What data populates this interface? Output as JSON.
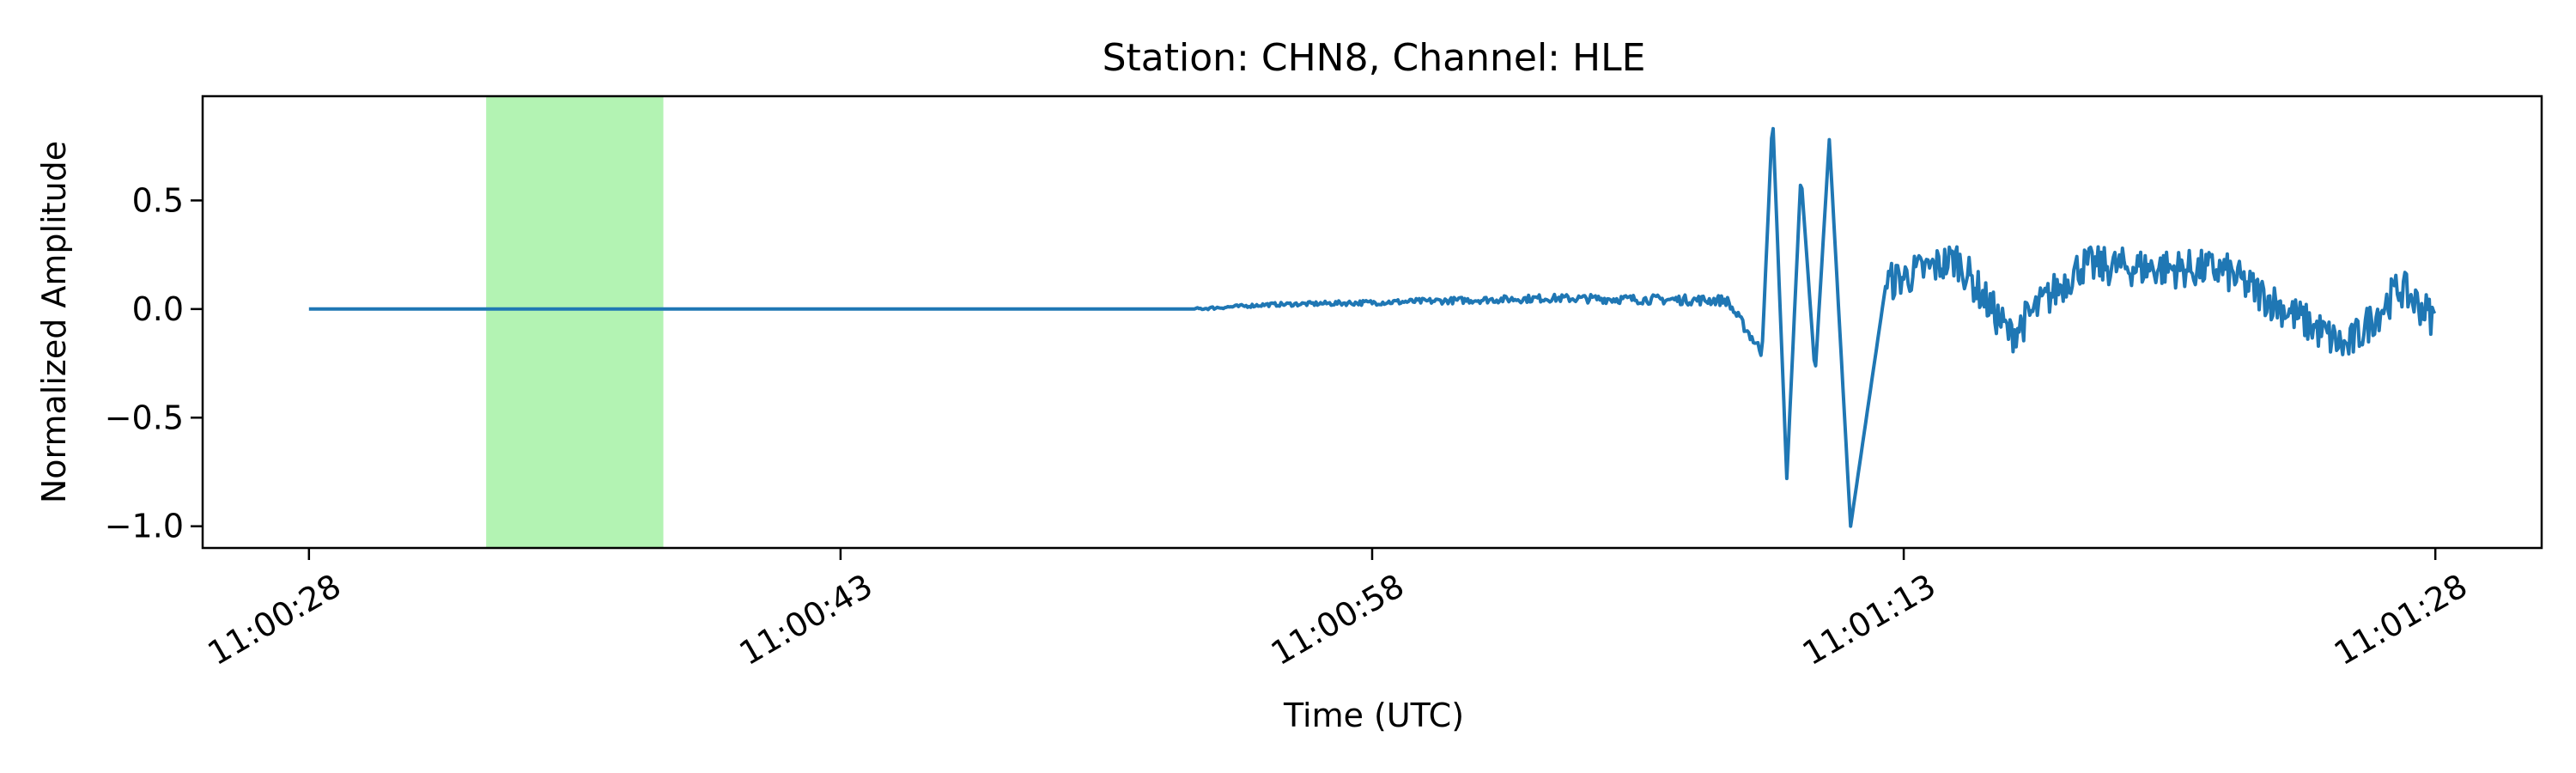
{
  "chart_data": {
    "type": "line",
    "title": "Station: CHN8, Channel: HLE",
    "xlabel": "Time (UTC)",
    "ylabel": "Normalized Amplitude",
    "x_start": "11:00:28",
    "x_end": "11:01:28",
    "xlim": [
      "11:00:25",
      "11:01:31"
    ],
    "ylim": [
      -1.1,
      0.98
    ],
    "x_ticks": [
      "11:00:28",
      "11:00:43",
      "11:00:58",
      "11:01:13",
      "11:01:28"
    ],
    "y_ticks": [
      0.5,
      0.0,
      -0.5,
      -1.0
    ],
    "y_tick_labels": [
      "0.5",
      "0.0",
      "−0.5",
      "−1.0"
    ],
    "highlight_span": {
      "start": "11:00:33",
      "end": "11:00:38",
      "color": "#b3f3b3"
    },
    "line_color": "#1f77b4",
    "grid": false,
    "series": [
      {
        "x": [
          "11:00:28",
          "11:00:38",
          "11:00:48",
          "11:00:53",
          "11:00:55",
          "11:00:58",
          "11:01:03",
          "11:01:08",
          "11:01:09",
          "11:01:09.3",
          "11:01:09.7",
          "11:01:10.1",
          "11:01:10.5",
          "11:01:10.9",
          "11:01:11.5",
          "11:01:12.5",
          "11:01:14.5",
          "11:01:16",
          "11:01:18",
          "11:01:22",
          "11:01:25.5",
          "11:01:27",
          "11:01:28"
        ],
        "y": [
          0.0,
          0.0,
          0.0,
          0.0,
          0.02,
          0.03,
          0.05,
          0.04,
          -0.2,
          0.89,
          -0.78,
          0.62,
          -0.3,
          0.78,
          -1.0,
          0.12,
          0.23,
          -0.12,
          0.2,
          0.18,
          -0.18,
          0.1,
          -0.05
        ]
      }
    ]
  }
}
